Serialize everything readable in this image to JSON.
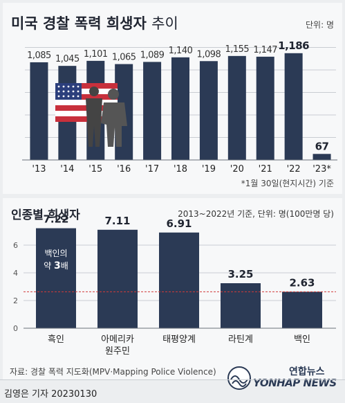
{
  "chart_data": [
    {
      "type": "bar",
      "title": "미국 경찰 폭력 희생자",
      "title_suffix": "추이",
      "unit_note": "단위: 명",
      "categories": [
        "'13",
        "'14",
        "'15",
        "'16",
        "'17",
        "'18",
        "'19",
        "'20",
        "'21",
        "'22",
        "'23*"
      ],
      "values": [
        1085,
        1045,
        1101,
        1065,
        1089,
        1140,
        1098,
        1155,
        1147,
        1186,
        67
      ],
      "value_labels": [
        "1,085",
        "1,045",
        "1,101",
        "1,065",
        "1,089",
        "1,140",
        "1,098",
        "1,155",
        "1,147",
        "1,186",
        "67"
      ],
      "ylim": [
        0,
        1300
      ],
      "grid": true,
      "footnote": "*1월 30일(현지시간) 기준",
      "colors": {
        "bar": "#2b3a55",
        "grid": "#c8ccd2"
      }
    },
    {
      "type": "bar",
      "title": "인종별 희생자",
      "subtitle": "2013~2022년 기준, 단위: 명(100만명 당)",
      "categories": [
        "흑인",
        "아메리카\n원주민",
        "태평양계",
        "라틴계",
        "백인"
      ],
      "values": [
        7.22,
        7.11,
        6.91,
        3.25,
        2.63
      ],
      "value_labels": [
        "7.22",
        "7.11",
        "6.91",
        "3.25",
        "2.63"
      ],
      "ylim": [
        0,
        8
      ],
      "yticks": [
        0,
        2,
        4,
        6
      ],
      "grid": true,
      "reference_line": 2.63,
      "annotation": {
        "line1": "백인의",
        "line2_pre": "약 ",
        "line2_bold": "3",
        "line2_post": "배"
      },
      "colors": {
        "bar": "#2b3a55",
        "reference": "#d23a3a",
        "grid": "#c8ccd2"
      }
    }
  ],
  "source": "자료: 경찰 폭력 지도화(MPV·Mapping Police Violence)",
  "byline": "김영은 기자  20230130",
  "logo": {
    "text_kr": "연합뉴스",
    "text_en": "YONHAP NEWS",
    "icon": "yonhap-wave-logo-icon"
  },
  "illustration": {
    "icon": "us-flag-and-silhouettes-icon",
    "flag_colors": {
      "red": "#c8303c",
      "blue": "#2c3f7c",
      "white": "#ffffff"
    }
  },
  "colors": {
    "text": "#222222",
    "muted": "#444444"
  }
}
